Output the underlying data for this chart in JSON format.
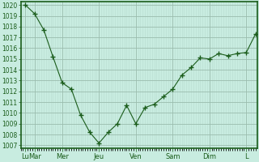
{
  "y_values": [
    1020,
    1019.2,
    1017.7,
    1015.2,
    1012.8,
    1012.2,
    1009.8,
    1008.2,
    1007.2,
    1008.2,
    1009.0,
    1010.7,
    1009.0,
    1010.5,
    1010.8,
    1011.5,
    1012.2,
    1013.5,
    1014.2,
    1015.1,
    1015.0,
    1015.5,
    1015.3,
    1015.5,
    1015.6,
    1017.3
  ],
  "x_tick_label_positions": [
    0,
    1,
    4,
    8,
    12,
    16,
    20,
    24
  ],
  "x_tick_labels": [
    "Lu",
    "Mar",
    "Mer",
    "Jeu",
    "Ven",
    "Sam",
    "Dim",
    "L"
  ],
  "ylim": [
    1007,
    1020
  ],
  "yticks": [
    1007,
    1008,
    1009,
    1010,
    1011,
    1012,
    1013,
    1014,
    1015,
    1016,
    1017,
    1018,
    1019,
    1020
  ],
  "bg_color": "#c8ece0",
  "grid_major_color": "#9abcad",
  "grid_minor_color": "#b8ddd0",
  "line_color": "#1a5c1a",
  "marker_color": "#1a5c1a",
  "tick_color": "#1a5c1a",
  "axis_color": "#1a5c1a",
  "label_fontsize": 6.0,
  "ytick_fontsize": 5.5
}
